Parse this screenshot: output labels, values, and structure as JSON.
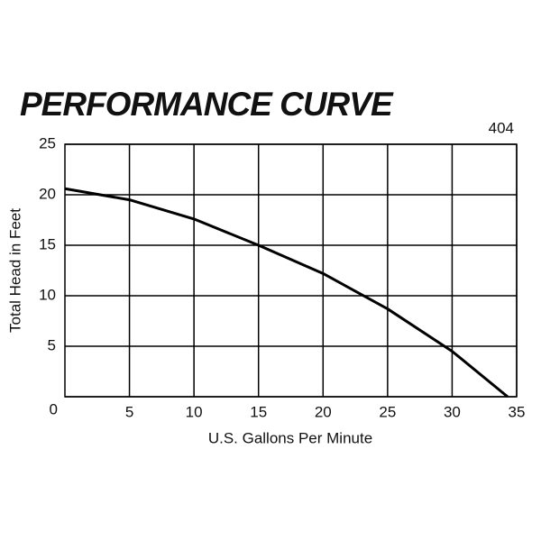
{
  "chart_data": {
    "type": "line",
    "title": "PERFORMANCE CURVE",
    "subtitle": "404",
    "x_label": "U.S. Gallons Per Minute",
    "y_label": "Total Head in Feet",
    "x": [
      0,
      5,
      10,
      15,
      20,
      25,
      30,
      34.3
    ],
    "series": [
      {
        "color": "#000000",
        "values": [
          20.6,
          19.5,
          17.6,
          15.0,
          12.2,
          8.7,
          4.5,
          0
        ]
      }
    ],
    "xlim": [
      0,
      35
    ],
    "xticks": [
      5,
      10,
      15,
      20,
      25,
      30,
      35
    ],
    "ylim": [
      0,
      25
    ],
    "yticks": [
      0,
      5,
      10,
      15,
      20,
      25
    ],
    "grid": true
  }
}
